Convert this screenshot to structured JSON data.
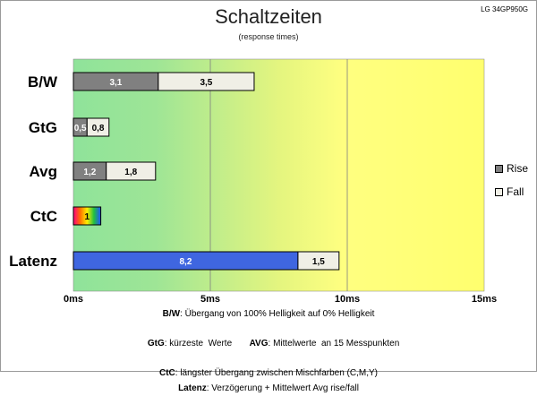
{
  "model": "LG 34GP950G",
  "title": "Schaltzeiten",
  "subtitle": "(response times)",
  "legend": {
    "rise": "Rise",
    "fall": "Fall"
  },
  "colors": {
    "rise": "#808080",
    "fall": "#f0efe6",
    "latenz": "#3f66e0",
    "zone_green": "#8fe39a",
    "zone_yellow": "#ffff80"
  },
  "chart_data": {
    "type": "bar",
    "orientation": "horizontal",
    "stacked": true,
    "xlim": [
      0,
      15
    ],
    "x_ticks": [
      "0ms",
      "5ms",
      "10ms",
      "15ms"
    ],
    "x_tick_values": [
      0,
      5,
      10,
      15
    ],
    "grid": true,
    "legend_position": "right",
    "categories": [
      "B/W",
      "GtG",
      "Avg",
      "CtC",
      "Latenz"
    ],
    "series": [
      {
        "name": "Rise",
        "values": [
          3.1,
          0.5,
          1.2,
          null,
          null
        ]
      },
      {
        "name": "Fall",
        "values": [
          3.5,
          0.8,
          1.8,
          null,
          null
        ]
      }
    ],
    "ctc": {
      "value": 1,
      "label": "1"
    },
    "latenz": {
      "delay": 8.2,
      "delay_label": "8,2",
      "avg": 1.5,
      "avg_label": "1,5"
    },
    "labels": {
      "rise": [
        "3,1",
        "0,5",
        "1,2"
      ],
      "fall": [
        "3,5",
        "0,8",
        "1,8"
      ]
    }
  },
  "notes": [
    {
      "key": "B/W",
      "text": ":  Übergang von 100% Helligkeit auf 0% Helligkeit"
    },
    {
      "key": "GtG",
      "text": ": kürzeste  Werte       ",
      "key2": "AVG",
      "text2": ": Mittelwerte  an 15 Messpunkten"
    },
    {
      "key": "CtC",
      "text": ": längster Übergang  zwischen Mischfarben  (C,M,Y)"
    },
    {
      "key": "Latenz",
      "text": ": Verzögerung  + Mittelwert Avg rise/fall"
    }
  ]
}
